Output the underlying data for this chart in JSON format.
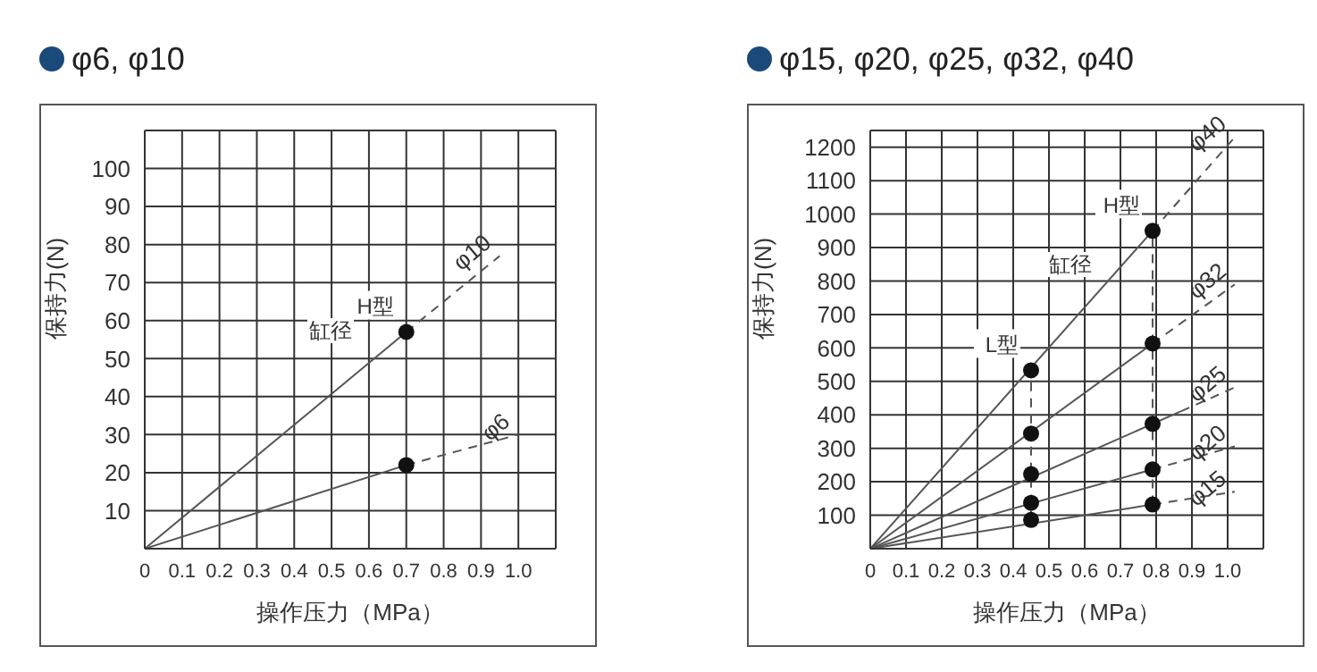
{
  "chart_data": [
    {
      "type": "line",
      "title": "φ6, φ10",
      "xlabel": "操作压力（MPa）",
      "ylabel": "保持力(N)",
      "xlim": [
        0,
        1.1
      ],
      "ylim": [
        0,
        110
      ],
      "xticks": [
        0,
        0.1,
        0.2,
        0.3,
        0.4,
        0.5,
        0.6,
        0.7,
        0.8,
        0.9,
        {
          "value": 1,
          "label": "1.0"
        }
      ],
      "yticks": [
        10,
        20,
        30,
        40,
        50,
        60,
        70,
        80,
        90,
        100
      ],
      "grid": true,
      "annotations": [
        {
          "text": "H型",
          "x": 0.7,
          "y": 57
        },
        "缸径"
      ],
      "series": [
        {
          "color": "#555555",
          "x": [
            0,
            0.7
          ],
          "values": [
            0,
            57
          ]
        },
        {
          "name": "φ10",
          "color": "#555555",
          "line_style": "dashed",
          "x": [
            0.7,
            0.95
          ],
          "values": [
            57,
            77
          ]
        },
        {
          "color": "#555555",
          "x": [
            0,
            0.7
          ],
          "values": [
            0,
            22
          ]
        },
        {
          "name": "φ6",
          "color": "#555555",
          "line_style": "dashed",
          "x": [
            0.7,
            1.0
          ],
          "values": [
            22,
            30
          ]
        },
        {
          "type": "scatter",
          "marker": "circle",
          "color": "#111111",
          "x": [
            0.7,
            0.7
          ],
          "values": [
            57,
            22
          ]
        }
      ]
    },
    {
      "type": "line",
      "title": "φ15, φ20, φ25, φ32, φ40",
      "xlabel": "操作压力（MPa）",
      "ylabel": "保持力(N)",
      "xlim": [
        0,
        1.1
      ],
      "ylim": [
        0,
        1250
      ],
      "xticks": [
        0,
        0.1,
        0.2,
        0.3,
        0.4,
        0.5,
        0.6,
        0.7,
        0.8,
        0.9,
        {
          "value": 1,
          "label": "1.0"
        }
      ],
      "yticks": [
        100,
        200,
        300,
        400,
        500,
        600,
        700,
        800,
        900,
        1000,
        1100,
        1200
      ],
      "grid": true,
      "annotations": [
        {
          "text": "H型",
          "x": 0.79,
          "y": 950
        },
        {
          "text": "L型",
          "x": 0.45,
          "y": 533
        },
        "缸径"
      ],
      "series": [
        {
          "color": "#555555",
          "x": [
            0,
            0.79
          ],
          "values": [
            0,
            950
          ]
        },
        {
          "name": "φ40",
          "color": "#555555",
          "line_style": "dashed",
          "x": [
            0.79,
            1.02
          ],
          "values": [
            950,
            1230
          ]
        },
        {
          "color": "#555555",
          "x": [
            0,
            0.79
          ],
          "values": [
            0,
            613
          ]
        },
        {
          "name": "φ32",
          "color": "#555555",
          "line_style": "dashed",
          "x": [
            0.79,
            1.02
          ],
          "values": [
            613,
            790
          ]
        },
        {
          "color": "#555555",
          "x": [
            0,
            0.87
          ],
          "values": [
            0,
            411
          ]
        },
        {
          "name": "φ25",
          "color": "#555555",
          "line_style": "dashed",
          "x": [
            0.87,
            1.02
          ],
          "values": [
            411,
            482
          ]
        },
        {
          "color": "#555555",
          "x": [
            0,
            0.79
          ],
          "values": [
            0,
            237
          ]
        },
        {
          "name": "φ20",
          "color": "#555555",
          "line_style": "dashed",
          "x": [
            0.79,
            1.02
          ],
          "values": [
            237,
            306
          ]
        },
        {
          "color": "#555555",
          "x": [
            0,
            0.79
          ],
          "values": [
            0,
            132
          ]
        },
        {
          "name": "φ15",
          "color": "#555555",
          "line_style": "dashed",
          "x": [
            0.79,
            1.02
          ],
          "values": [
            132,
            170
          ]
        },
        {
          "color": "#555555",
          "line_style": "dashed",
          "x": [
            0.45,
            0.45
          ],
          "values": [
            86,
            533
          ]
        },
        {
          "color": "#555555",
          "line_style": "dashed",
          "x": [
            0.79,
            0.79
          ],
          "values": [
            132,
            950
          ]
        },
        {
          "type": "scatter",
          "marker": "circle",
          "color": "#111111",
          "x": [
            0.45,
            0.45,
            0.45,
            0.45,
            0.45
          ],
          "values": [
            533,
            344,
            223,
            137,
            86
          ]
        },
        {
          "type": "scatter",
          "marker": "circle",
          "color": "#111111",
          "x": [
            0.79,
            0.79,
            0.79,
            0.79,
            0.79
          ],
          "values": [
            950,
            613,
            373,
            237,
            132
          ]
        }
      ]
    }
  ]
}
